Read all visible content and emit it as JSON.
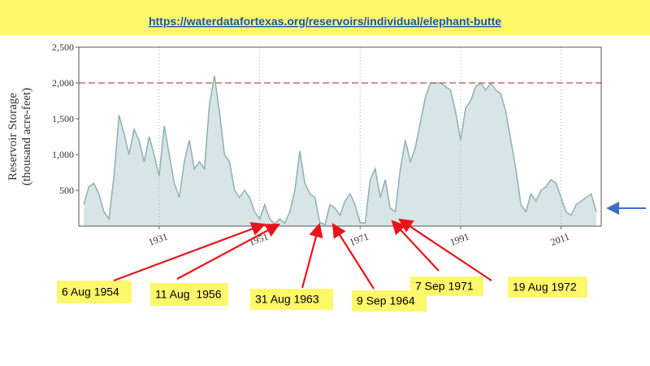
{
  "chart_data": {
    "type": "area",
    "source_url": "https://waterdatafortexas.org/reservoirs/individual/elephant-butte",
    "y_label": [
      "Reservoir Storage",
      "(thousand acre-feet)"
    ],
    "x": [
      1916,
      1917,
      1918,
      1919,
      1920,
      1921,
      1922,
      1923,
      1924,
      1925,
      1926,
      1927,
      1928,
      1929,
      1930,
      1931,
      1932,
      1933,
      1934,
      1935,
      1936,
      1937,
      1938,
      1939,
      1940,
      1941,
      1942,
      1943,
      1944,
      1945,
      1946,
      1947,
      1948,
      1949,
      1950,
      1951,
      1952,
      1953,
      1954,
      1955,
      1956,
      1957,
      1958,
      1959,
      1960,
      1961,
      1962,
      1963,
      1964,
      1965,
      1966,
      1967,
      1968,
      1969,
      1970,
      1971,
      1972,
      1973,
      1974,
      1975,
      1976,
      1977,
      1978,
      1979,
      1980,
      1981,
      1982,
      1983,
      1984,
      1985,
      1986,
      1987,
      1988,
      1989,
      1990,
      1991,
      1992,
      1993,
      1994,
      1995,
      1996,
      1997,
      1998,
      1999,
      2000,
      2001,
      2002,
      2003,
      2004,
      2005,
      2006,
      2007,
      2008,
      2009,
      2010,
      2011,
      2012,
      2013,
      2014,
      2015,
      2016,
      2017,
      2018
    ],
    "values": [
      300,
      550,
      600,
      450,
      200,
      100,
      700,
      1550,
      1300,
      1000,
      1350,
      1200,
      900,
      1250,
      1000,
      700,
      1400,
      1000,
      600,
      400,
      900,
      1200,
      800,
      900,
      800,
      1700,
      2100,
      1600,
      1000,
      900,
      500,
      400,
      500,
      400,
      200,
      100,
      300,
      100,
      30,
      100,
      40,
      200,
      500,
      1050,
      600,
      450,
      400,
      50,
      20,
      300,
      250,
      150,
      350,
      450,
      300,
      50,
      40,
      650,
      800,
      400,
      650,
      250,
      200,
      800,
      1200,
      900,
      1100,
      1450,
      1800,
      2000,
      2000,
      2000,
      1950,
      1900,
      1600,
      1200,
      1650,
      1750,
      1950,
      2000,
      1900,
      2000,
      1900,
      1850,
      1600,
      1200,
      800,
      300,
      200,
      450,
      350,
      500,
      550,
      650,
      600,
      400,
      200,
      150,
      300,
      350,
      400,
      450,
      200
    ],
    "color": "#8fb0b0",
    "fill": "#d7e5e7",
    "xlim": [
      1915,
      2019
    ],
    "xticks": [
      1931,
      1951,
      1971,
      1991,
      2011
    ],
    "ylim": [
      0,
      2500
    ],
    "yticks": [
      {
        "value": 500,
        "label": "500"
      },
      {
        "value": 1000,
        "label": "1,000"
      },
      {
        "value": 1500,
        "label": "1,500"
      },
      {
        "value": 2000,
        "label": "2,000"
      },
      {
        "value": 2500,
        "label": "2,500"
      }
    ],
    "reference_line": {
      "value": 2000,
      "color": "#d46a6a"
    },
    "grid": true,
    "annotations": [
      "6 Aug 1954",
      "11 Aug  1956",
      "31 Aug 1963",
      "9 Sep 1964",
      "7 Sep 1971",
      "19 Aug 1972"
    ]
  }
}
